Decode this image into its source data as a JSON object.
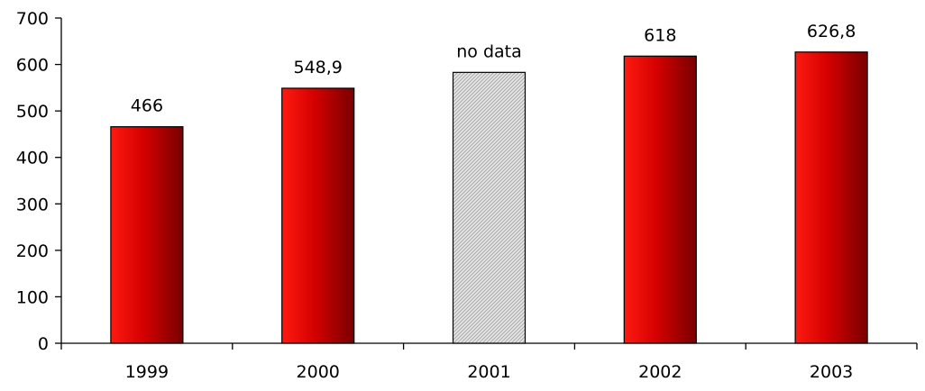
{
  "chart_data": {
    "type": "bar",
    "title": "",
    "xlabel": "",
    "ylabel": "",
    "categories": [
      "1999",
      "2000",
      "2001",
      "2002",
      "2003"
    ],
    "values": [
      466,
      548.9,
      583,
      618,
      626.8
    ],
    "data_labels": [
      "466",
      "548,9",
      "no data",
      "618",
      "626,8"
    ],
    "bar_styles": [
      "gradient",
      "gradient",
      "hatched",
      "gradient",
      "gradient"
    ],
    "ylim": [
      0,
      700
    ],
    "yticks": [
      0,
      100,
      200,
      300,
      400,
      500,
      600,
      700
    ],
    "ytick_labels": [
      "0",
      "100",
      "200",
      "300",
      "400",
      "500",
      "600",
      "700"
    ],
    "grid": false,
    "legend": "none",
    "colors": {
      "bar_light": "#ff1a10",
      "bar_mid": "#d40000",
      "bar_dark": "#780000",
      "hatch_bg": "#e6e6e6",
      "hatch_line": "#a8a8a8",
      "axis": "#000000"
    }
  }
}
